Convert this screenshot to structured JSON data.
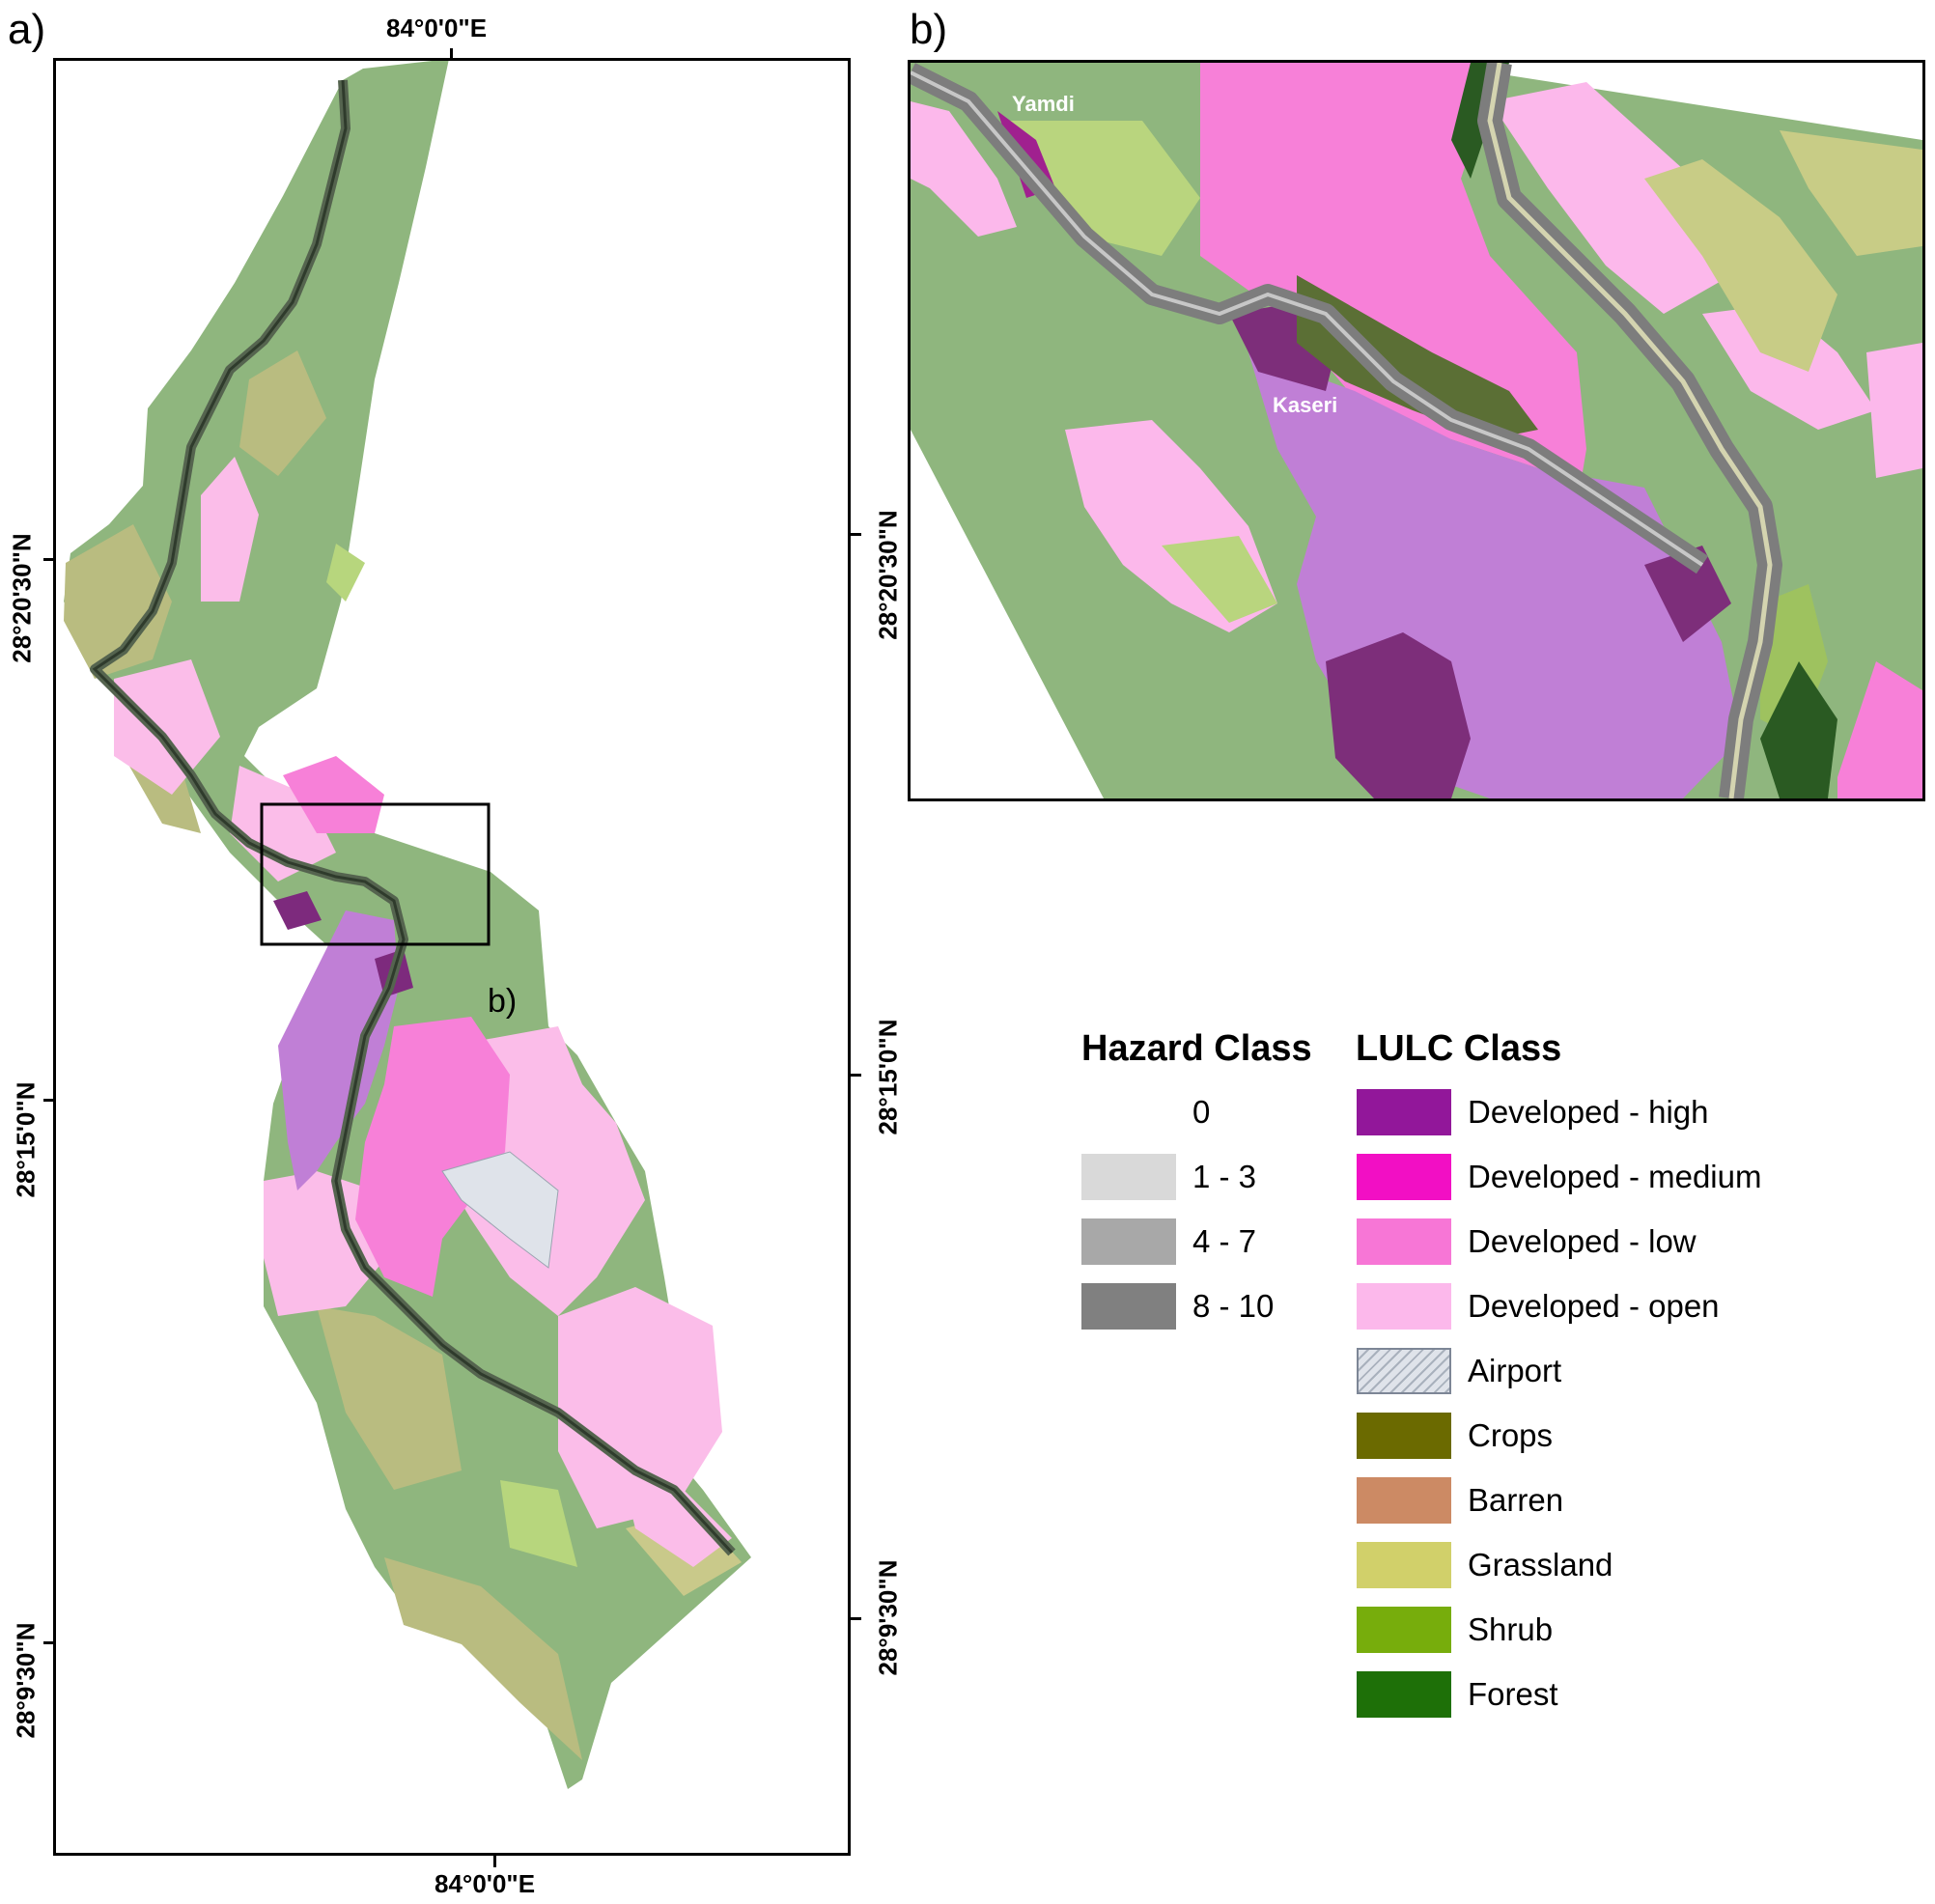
{
  "panels": {
    "a": {
      "letter": "a)",
      "inset_label": "b)",
      "top_lon": "84°0'0\"E",
      "bottom_lon": "84°0'0\"E",
      "lat_north": "28°20'30\"N",
      "lat_mid": "28°15'0\"N",
      "lat_south": "28°9'30\"N"
    },
    "b": {
      "letter": "b)",
      "lat": "28°20'30\"N",
      "places": {
        "yamdi": "Yamdi",
        "kaseri": "Kaseri"
      }
    }
  },
  "right_axis": {
    "lat_mid": "28°15'0\"N",
    "lat_south": "28°9'30\"N"
  },
  "legend": {
    "hazard_title": "Hazard Class",
    "lulc_title": "LULC Class",
    "hazard": [
      {
        "label": "0",
        "color": "#ffffff"
      },
      {
        "label": "1 - 3",
        "color": "#d9d9d9"
      },
      {
        "label": "4 - 7",
        "color": "#a8a8a8"
      },
      {
        "label": "8 - 10",
        "color": "#808080"
      }
    ],
    "lulc": [
      {
        "label": "Developed - high",
        "color": "#92179a"
      },
      {
        "label": "Developed - medium",
        "color": "#f20fc4"
      },
      {
        "label": "Developed - low",
        "color": "#f776d6"
      },
      {
        "label": "Developed - open",
        "color": "#fcb8eb"
      },
      {
        "label": "Airport",
        "color": "#dfe3ea"
      },
      {
        "label": "Crops",
        "color": "#6b6a00"
      },
      {
        "label": "Barren",
        "color": "#cc8a64"
      },
      {
        "label": "Grassland",
        "color": "#d1d06a"
      },
      {
        "label": "Shrub",
        "color": "#77ad0c"
      },
      {
        "label": "Forest",
        "color": "#1e7008"
      }
    ]
  }
}
